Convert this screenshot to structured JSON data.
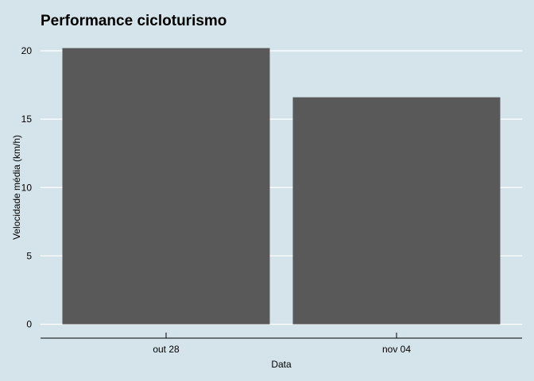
{
  "chart_data": {
    "type": "bar",
    "title": "Performance cicloturismo",
    "xlabel": "Data",
    "ylabel": "Velocidade média (km/h)",
    "categories": [
      "out 28",
      "nov 04"
    ],
    "values": [
      20.2,
      16.6
    ],
    "ylim": [
      0,
      20
    ],
    "yticks": [
      "0",
      "5",
      "10",
      "15",
      "20"
    ],
    "grid": "horizontal",
    "legend": "none",
    "colors": {
      "background": "#d5e4eb",
      "bar": "#595959",
      "grid": "#ffffff",
      "axis": "#000000"
    }
  }
}
